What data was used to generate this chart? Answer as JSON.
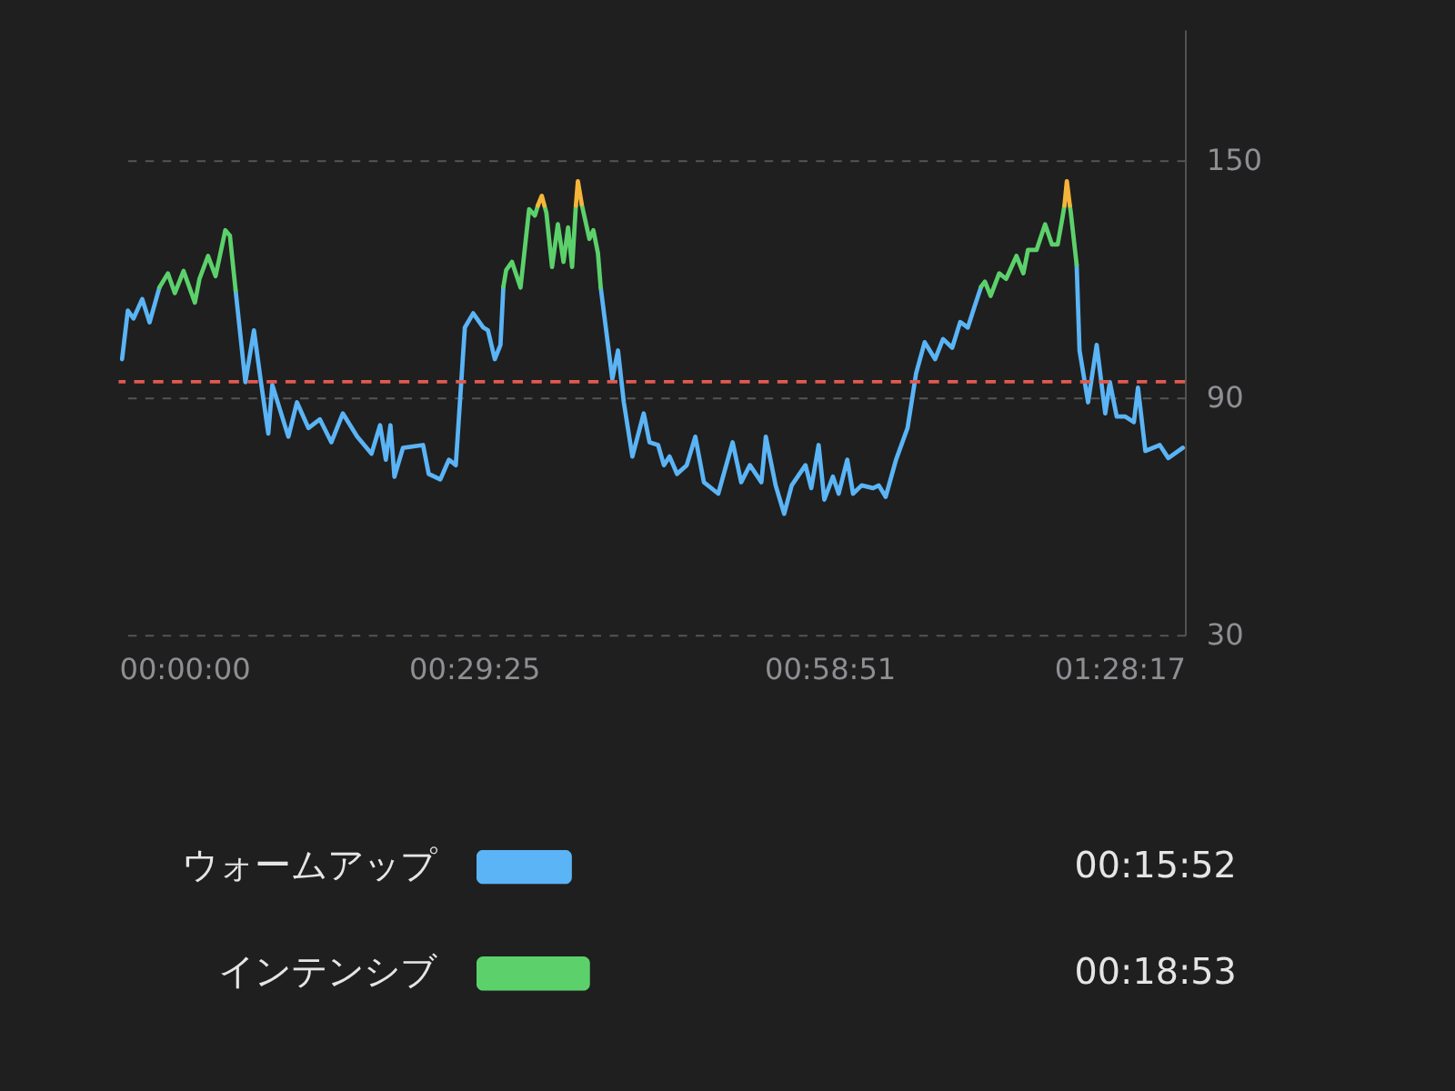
{
  "chart_data": [
    {
      "type": "line",
      "xlim": [
        0,
        88.28
      ],
      "ylim": [
        30,
        183
      ],
      "xticks": [
        {
          "value": 0,
          "label": "00:00:00"
        },
        {
          "value": 29.42,
          "label": "00:29:25"
        },
        {
          "value": 58.85,
          "label": "00:58:51"
        },
        {
          "value": 88.28,
          "label": "01:28:17"
        }
      ],
      "yticks": [
        30,
        90,
        150
      ],
      "grid": "y",
      "legend": false,
      "marker": "none",
      "line_style": "solid",
      "series": [
        {
          "color": "#5ab4f5",
          "x": [
            0.28,
            0.76,
            1.23,
            1.95,
            2.56,
            3.37
          ],
          "values": [
            99.7,
            112,
            110,
            114.9,
            109,
            117.8
          ]
        },
        {
          "color": "#5ab4f5",
          "x": [
            9.68,
            10.49,
            11.2,
            11.78,
            12.39,
            12.72,
            14.05,
            14.76,
            15.71,
            16.66,
            17.61,
            18.56,
            19.75,
            20.93,
            21.64,
            22.12,
            22.5,
            22.83,
            23.54,
            25.2,
            25.67,
            26.63,
            27.34,
            27.91,
            28.66,
            29.35,
            30.19,
            30.57,
            31.14,
            31.61,
            31.85
          ],
          "values": [
            117.1,
            93.9,
            107,
            93.9,
            80.9,
            93.2,
            80.1,
            88.8,
            82.3,
            84.5,
            78.7,
            86,
            80.1,
            75.8,
            83,
            74.3,
            83,
            70,
            77.3,
            78,
            70.7,
            69.3,
            74.3,
            72.9,
            107.7,
            111.3,
            107.7,
            107,
            99.7,
            103.3,
            118
          ]
        },
        {
          "color": "#5ab4f5",
          "x": [
            39.91,
            40.87,
            41.34,
            41.82,
            42.53,
            43.47,
            43.95,
            44.66,
            45.14,
            45.61,
            46.23,
            47.03,
            47.74,
            48.45,
            49.64,
            50.83,
            51.54,
            52.26,
            53.21,
            53.58,
            54.39,
            55.1,
            55.72,
            56.86,
            57.34,
            57.95,
            58.42,
            59.13,
            59.61,
            60.32,
            60.8,
            61.51,
            62.46,
            62.93,
            63.5,
            64.36,
            65.31,
            66.02,
            66.73,
            67.59,
            68.25,
            69.01,
            69.67,
            70.3,
            70.91,
            71.4
          ],
          "values": [
            117.8,
            94.7,
            101.9,
            88.8,
            75.1,
            86,
            78.7,
            78,
            72.9,
            75.1,
            70.7,
            72.9,
            80.1,
            68.6,
            65.7,
            78.7,
            68.6,
            72.9,
            68.6,
            80.1,
            67.8,
            60.6,
            67.8,
            72.9,
            67.1,
            78,
            64.2,
            70,
            65.7,
            74.3,
            65.7,
            67.8,
            67.1,
            67.8,
            64.9,
            74.3,
            82.3,
            96.1,
            104,
            99.7,
            104.8,
            102.6,
            109.1,
            107.7,
            113.5,
            118
          ]
        },
        {
          "color": "#5ab4f5",
          "x": [
            79.31,
            79.55,
            80.26,
            80.97,
            81.68,
            82.06,
            82.63,
            83.34,
            84.05,
            84.39,
            85.0,
            86.19,
            86.9,
            88.1
          ],
          "values": [
            123.6,
            101.9,
            88.8,
            103.3,
            86,
            93.9,
            85.2,
            85.2,
            83.8,
            92.5,
            76.5,
            78,
            74.7,
            77.3
          ]
        },
        {
          "color": "#5cd16b",
          "x": [
            3.37,
            4.08,
            4.65,
            5.37,
            6.31,
            6.69,
            7.4,
            8.02,
            8.83,
            9.21,
            9.68
          ],
          "values": [
            117.8,
            121.4,
            116.4,
            122,
            114,
            120,
            125.8,
            120.7,
            132.3,
            130.9,
            117.1
          ]
        },
        {
          "color": "#5cd16b",
          "x": [
            31.85,
            32.08,
            32.56,
            33.27,
            33.98,
            34.46,
            34.7
          ],
          "values": [
            118,
            122.2,
            124.3,
            117.8,
            137.6,
            136,
            138.5
          ]
        },
        {
          "color": "#5cd16b",
          "x": [
            35.25,
            35.41,
            35.88,
            36.36,
            36.83,
            37.21,
            37.54,
            37.85
          ],
          "values": [
            138.5,
            136.7,
            123,
            133.8,
            124.3,
            133,
            123,
            138.5
          ]
        },
        {
          "color": "#5cd16b",
          "x": [
            38.34,
            38.97,
            39.3,
            39.68,
            39.91
          ],
          "values": [
            138.8,
            130.1,
            132.3,
            126.5,
            117.8
          ]
        },
        {
          "color": "#5cd16b",
          "x": [
            71.4,
            71.72,
            72.19,
            72.9,
            73.47,
            74.33,
            74.9,
            75.28,
            75.99,
            76.7,
            77.27,
            77.74,
            78.12,
            78.3
          ],
          "values": [
            118,
            119.3,
            115.7,
            121.4,
            120,
            125.8,
            121.4,
            127.3,
            127.3,
            133.8,
            128.7,
            128.7,
            135.2,
            138.5
          ]
        },
        {
          "color": "#5cd16b",
          "x": [
            78.75,
            78.83,
            79.31
          ],
          "values": [
            138.5,
            136.7,
            123.6
          ]
        },
        {
          "color": "#f5b53a",
          "x": [
            34.7,
            35.03,
            35.25
          ],
          "values": [
            138.5,
            141,
            138.5
          ]
        },
        {
          "color": "#f5b53a",
          "x": [
            37.85,
            38.02,
            38.34
          ],
          "values": [
            138.5,
            144.7,
            138.8
          ]
        },
        {
          "color": "#f5b53a",
          "x": [
            78.3,
            78.5,
            78.75
          ],
          "values": [
            138.5,
            144.7,
            138.5
          ]
        }
      ],
      "ref_lines": [
        {
          "axis": "y",
          "value": 94,
          "color": "#e05a50",
          "line_style": "dashed"
        }
      ]
    },
    {
      "type": "bar",
      "orientation": "horizontal",
      "categories": [
        "ウォームアップ",
        "インテンシブ"
      ],
      "values": [
        15.87,
        18.88
      ],
      "colors": [
        "#5ab4f5",
        "#5cd16b"
      ],
      "value_labels": [
        "00:15:52",
        "00:18:53"
      ]
    }
  ]
}
